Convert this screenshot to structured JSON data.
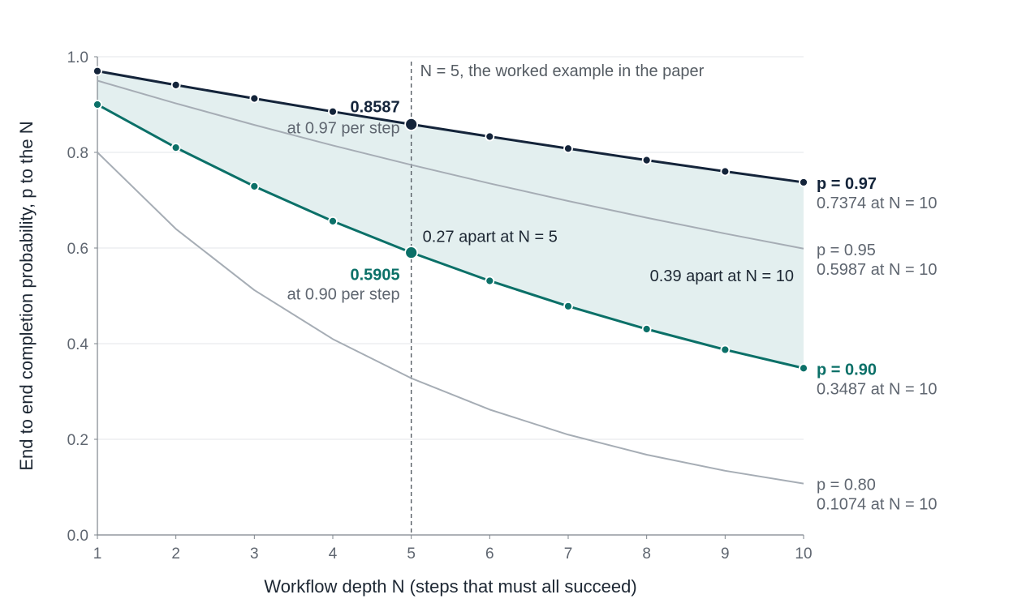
{
  "colors": {
    "dark": "#14243a",
    "teal": "#0b7068",
    "gray": "#a6adb5",
    "band": "#e3efef",
    "grid": "#e3e6e9",
    "axis": "#7e858c",
    "tick_text": "#5f6670",
    "annotation_text": "#1d2733"
  },
  "chart_data": {
    "type": "line",
    "xlabel": "Workflow depth N (steps that must all succeed)",
    "ylabel": "End to end completion probability, p to the N",
    "x": [
      1,
      2,
      3,
      4,
      5,
      6,
      7,
      8,
      9,
      10
    ],
    "xlim": [
      1,
      10
    ],
    "ylim": [
      0,
      1
    ],
    "x_ticks": [
      "1",
      "2",
      "3",
      "4",
      "5",
      "6",
      "7",
      "8",
      "9",
      "10"
    ],
    "y_ticks": [
      "0.0",
      "0.2",
      "0.4",
      "0.6",
      "0.8",
      "1.0"
    ],
    "grid": "horizontal",
    "shaded_band_between": [
      "p = 0.97",
      "p = 0.90"
    ],
    "series": [
      {
        "name": "p = 0.97",
        "p": 0.97,
        "style": "dark",
        "markers": true,
        "values": [
          0.97,
          0.9409,
          0.9127,
          0.8853,
          0.8587,
          0.833,
          0.808,
          0.7837,
          0.7602,
          0.7374
        ],
        "end_label": "p = 0.97",
        "end_sublabel": "0.7374 at N = 10"
      },
      {
        "name": "p = 0.95",
        "p": 0.95,
        "style": "gray",
        "markers": false,
        "values": [
          0.95,
          0.9025,
          0.8574,
          0.8145,
          0.7738,
          0.7351,
          0.6983,
          0.6634,
          0.6302,
          0.5987
        ],
        "end_label": "p = 0.95",
        "end_sublabel": "0.5987 at N = 10"
      },
      {
        "name": "p = 0.90",
        "p": 0.9,
        "style": "teal",
        "markers": true,
        "values": [
          0.9,
          0.81,
          0.729,
          0.6561,
          0.5905,
          0.5314,
          0.4783,
          0.4305,
          0.3874,
          0.3487
        ],
        "end_label": "p = 0.90",
        "end_sublabel": "0.3487 at N = 10"
      },
      {
        "name": "p = 0.80",
        "p": 0.8,
        "style": "gray",
        "markers": false,
        "values": [
          0.8,
          0.64,
          0.512,
          0.4096,
          0.3277,
          0.2621,
          0.2097,
          0.1678,
          0.1342,
          0.1074
        ],
        "end_label": "p = 0.80",
        "end_sublabel": "0.1074 at N = 10"
      }
    ],
    "reference_line": {
      "x": 5,
      "label": "N = 5, the worked example in the paper"
    },
    "annotations": {
      "top_value": "0.8587",
      "top_note": "at 0.97 per step",
      "low_value": "0.5905",
      "low_note": "at 0.90 per step",
      "gap_at_5": "0.27 apart at N = 5",
      "gap_at_10": "0.39 apart at N = 10"
    }
  }
}
